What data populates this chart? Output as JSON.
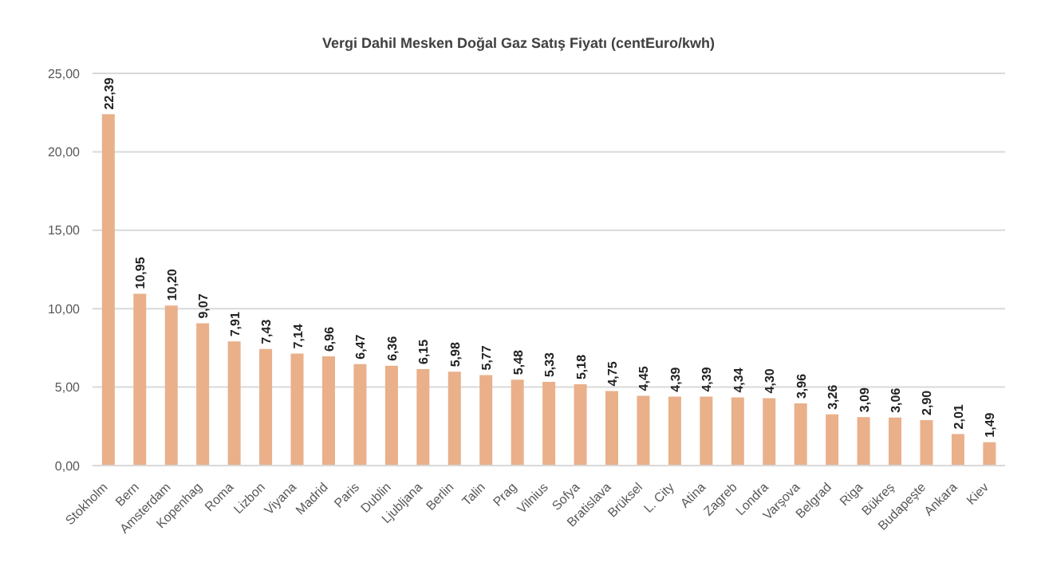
{
  "chart_data": {
    "type": "bar",
    "title": "Vergi Dahil Mesken Doğal Gaz Satış Fiyatı (centEuro/kwh)",
    "categories": [
      "Stokholm",
      "Bern",
      "Amsterdam",
      "Kopenhag",
      "Roma",
      "Lizbon",
      "Viyana",
      "Madrid",
      "Paris",
      "Dublin",
      "Ljubljana",
      "Berlin",
      "Talin",
      "Prag",
      "Vilnius",
      "Sofya",
      "Bratislava",
      "Brüksel",
      "L. City",
      "Atina",
      "Zagreb",
      "Londra",
      "Varşova",
      "Belgrad",
      "Riga",
      "Bükreş",
      "Budapeşte",
      "Ankara",
      "Kiev"
    ],
    "values": [
      22.39,
      10.95,
      10.2,
      9.07,
      7.91,
      7.43,
      7.14,
      6.96,
      6.47,
      6.36,
      6.15,
      5.98,
      5.77,
      5.48,
      5.33,
      5.18,
      4.75,
      4.45,
      4.39,
      4.39,
      4.34,
      4.3,
      3.96,
      3.26,
      3.09,
      3.06,
      2.9,
      2.01,
      1.49
    ],
    "value_labels": [
      "22,39",
      "10,95",
      "10,20",
      "9,07",
      "7,91",
      "7,43",
      "7,14",
      "6,96",
      "6,47",
      "6,36",
      "6,15",
      "5,98",
      "5,77",
      "5,48",
      "5,33",
      "5,18",
      "4,75",
      "4,45",
      "4,39",
      "4,39",
      "4,34",
      "4,30",
      "3,96",
      "3,26",
      "3,09",
      "3,06",
      "2,90",
      "2,01",
      "1,49"
    ],
    "color": "#e9b08a",
    "ylim": [
      0,
      25
    ],
    "yticks": [
      {
        "value": 0,
        "label": "0,00"
      },
      {
        "value": 5,
        "label": "5,00"
      },
      {
        "value": 10,
        "label": "10,00"
      },
      {
        "value": 15,
        "label": "15,00"
      },
      {
        "value": 20,
        "label": "20,00"
      },
      {
        "value": 25,
        "label": "25,00"
      }
    ],
    "grid": "y"
  }
}
